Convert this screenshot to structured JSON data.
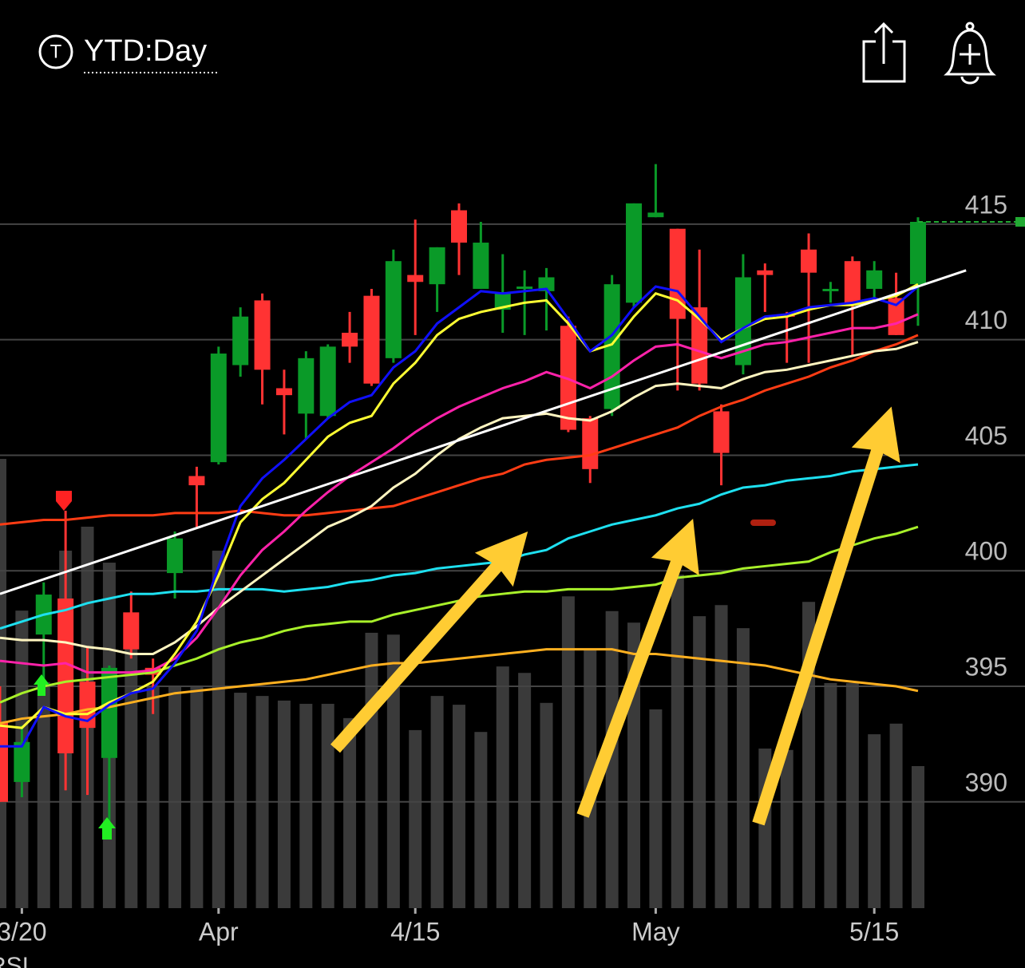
{
  "header": {
    "icon_letter": "T",
    "title": "YTD:Day"
  },
  "chart_data": {
    "type": "candlestick",
    "categories": [
      null,
      "3/20",
      null,
      null,
      null,
      null,
      null,
      null,
      null,
      null,
      "Apr",
      null,
      null,
      null,
      null,
      null,
      null,
      null,
      null,
      "4/15",
      null,
      null,
      null,
      null,
      null,
      null,
      null,
      null,
      null,
      null,
      "May",
      null,
      null,
      null,
      null,
      null,
      null,
      null,
      null,
      null,
      "5/15",
      null,
      null
    ],
    "open": [
      393.45,
      390.86,
      397.24,
      398.8,
      395.2,
      391.9,
      398.2,
      395.8,
      399.9,
      404.1,
      404.7,
      408.9,
      411.7,
      407.9,
      406.8,
      406.7,
      410.3,
      411.9,
      409.2,
      412.8,
      412.4,
      415.6,
      412.2,
      411.3,
      412.2,
      412.1,
      410.6,
      406.6,
      407.0,
      411.6,
      415.3,
      414.8,
      411.4,
      406.9,
      408.9,
      413.0,
      411.1,
      413.9,
      412.1,
      413.4,
      412.2,
      411.8,
      412.4
    ],
    "high": [
      395.0,
      393.3,
      399.5,
      402.6,
      396.7,
      395.9,
      399.1,
      396.2,
      401.7,
      404.5,
      409.7,
      411.4,
      412.0,
      408.7,
      409.5,
      409.8,
      411.2,
      412.2,
      413.9,
      415.2,
      414.0,
      415.9,
      415.1,
      413.7,
      413.0,
      413.1,
      411.0,
      406.7,
      412.8,
      415.9,
      417.6,
      414.8,
      413.9,
      407.2,
      413.7,
      413.3,
      411.2,
      414.6,
      412.5,
      413.6,
      413.4,
      412.9,
      415.3
    ],
    "low": [
      390.0,
      390.2,
      395.0,
      390.5,
      390.3,
      388.4,
      396.2,
      393.8,
      398.8,
      401.9,
      404.6,
      408.4,
      407.2,
      405.9,
      405.7,
      406.6,
      409.0,
      408.0,
      409.0,
      410.2,
      411.2,
      412.8,
      412.2,
      410.3,
      410.2,
      410.4,
      406.0,
      403.8,
      406.7,
      411.4,
      415.3,
      407.8,
      407.8,
      403.7,
      408.5,
      411.2,
      409.0,
      409.0,
      411.6,
      409.3,
      411.7,
      410.2,
      410.6
    ],
    "close": [
      390.0,
      392.59,
      398.97,
      392.1,
      393.2,
      395.8,
      396.6,
      395.5,
      401.4,
      403.7,
      409.4,
      411.0,
      408.7,
      407.6,
      409.2,
      409.7,
      409.7,
      408.1,
      413.4,
      412.5,
      414.0,
      414.2,
      414.2,
      412.0,
      412.3,
      412.7,
      406.1,
      404.4,
      412.4,
      415.9,
      415.5,
      410.9,
      408.1,
      405.1,
      412.7,
      412.8,
      411.0,
      412.9,
      412.2,
      411.6,
      413.0,
      410.2,
      415.1
    ],
    "up_color": "#0a9a28",
    "down_color": "#ff3333",
    "volume": [
      97.4,
      64.5,
      49.0,
      77.5,
      82.7,
      74.9,
      57.6,
      48.1,
      48.1,
      48.1,
      77.5,
      46.7,
      46.0,
      45.0,
      44.3,
      44.3,
      41.2,
      59.7,
      59.3,
      38.6,
      46.0,
      44.1,
      38.2,
      52.4,
      51.0,
      44.5,
      67.6,
      55.9,
      64.4,
      61.9,
      43.1,
      72.3,
      63.3,
      65.7,
      60.7,
      34.6,
      34.3,
      66.4,
      48.8,
      48.8,
      37.7,
      40.0,
      30.8
    ],
    "volume_lim": [
      0,
      100
    ],
    "volume_color": "#3a3a3a",
    "series": [
      {
        "color": "#ffb020",
        "values": [
          393.4,
          393.6,
          393.7,
          393.8,
          394.0,
          394.1,
          394.3,
          394.5,
          394.7,
          394.8,
          394.9,
          395.0,
          395.1,
          395.2,
          395.3,
          395.5,
          395.7,
          395.9,
          396.0,
          396.0,
          396.1,
          396.2,
          396.3,
          396.4,
          396.5,
          396.6,
          396.6,
          396.6,
          396.6,
          396.4,
          396.4,
          396.3,
          396.2,
          396.1,
          396.0,
          395.9,
          395.7,
          395.5,
          395.3,
          395.2,
          395.1,
          395.0,
          394.8
        ]
      },
      {
        "color": "#a8f02a",
        "values": [
          394.3,
          394.7,
          395.0,
          395.2,
          395.3,
          395.4,
          395.5,
          395.6,
          395.9,
          396.2,
          396.6,
          396.9,
          397.1,
          397.4,
          397.6,
          397.7,
          397.8,
          397.8,
          398.1,
          398.3,
          398.5,
          398.7,
          398.9,
          399.0,
          399.1,
          399.1,
          399.2,
          399.2,
          399.2,
          399.3,
          399.4,
          399.7,
          399.8,
          399.9,
          400.1,
          400.2,
          400.3,
          400.4,
          400.8,
          401.1,
          401.4,
          401.6,
          401.9
        ]
      },
      {
        "color": "#1ee0f0",
        "values": [
          397.5,
          397.8,
          398.1,
          398.3,
          398.6,
          398.8,
          399.0,
          399.0,
          399.1,
          399.1,
          399.2,
          399.2,
          399.2,
          399.1,
          399.2,
          399.3,
          399.5,
          399.6,
          399.8,
          399.9,
          400.1,
          400.2,
          400.3,
          400.4,
          400.7,
          400.9,
          401.4,
          401.7,
          402.0,
          402.2,
          402.4,
          402.7,
          402.9,
          403.3,
          403.6,
          403.7,
          403.9,
          404.0,
          404.1,
          404.3,
          404.4,
          404.5,
          404.6
        ]
      },
      {
        "color": "#ff3c14",
        "values": [
          402.0,
          402.1,
          402.2,
          402.2,
          402.3,
          402.4,
          402.4,
          402.4,
          402.5,
          402.5,
          402.5,
          402.6,
          402.5,
          402.4,
          402.4,
          402.5,
          402.6,
          402.7,
          402.8,
          403.1,
          403.4,
          403.7,
          404.0,
          404.2,
          404.6,
          404.8,
          404.9,
          405.0,
          405.3,
          405.6,
          405.9,
          406.2,
          406.7,
          407.1,
          407.4,
          407.8,
          408.1,
          408.4,
          408.8,
          409.1,
          409.5,
          409.8,
          410.2
        ]
      },
      {
        "color": "#fff5c0",
        "values": [
          397.1,
          397.0,
          397.0,
          396.9,
          396.7,
          396.6,
          396.4,
          396.4,
          396.9,
          397.6,
          398.4,
          399.1,
          399.8,
          400.5,
          401.2,
          401.9,
          402.3,
          402.8,
          403.6,
          404.2,
          405.0,
          405.7,
          406.2,
          406.6,
          406.7,
          406.8,
          406.6,
          406.5,
          406.9,
          407.5,
          408.0,
          408.1,
          408.0,
          407.9,
          408.3,
          408.6,
          408.7,
          408.9,
          409.1,
          409.3,
          409.5,
          409.6,
          409.9
        ]
      },
      {
        "color": "#ff22aa",
        "values": [
          396.1,
          396.0,
          395.9,
          396.0,
          395.6,
          395.6,
          395.6,
          395.7,
          396.2,
          397.1,
          398.4,
          399.8,
          400.9,
          401.7,
          402.6,
          403.4,
          404.1,
          404.7,
          405.3,
          406.0,
          406.6,
          407.1,
          407.5,
          407.9,
          408.2,
          408.6,
          408.3,
          407.9,
          408.4,
          409.1,
          409.7,
          409.8,
          409.5,
          409.2,
          409.5,
          409.8,
          409.9,
          410.1,
          410.3,
          410.5,
          410.5,
          410.7,
          411.1
        ]
      },
      {
        "color": "#ffff33",
        "values": [
          393.3,
          393.2,
          394.1,
          393.8,
          393.8,
          394.3,
          394.7,
          395.2,
          396.4,
          397.8,
          399.8,
          402.1,
          403.1,
          403.8,
          404.8,
          405.8,
          406.4,
          406.7,
          408.1,
          409.0,
          410.2,
          410.9,
          411.2,
          411.4,
          411.6,
          411.7,
          410.7,
          409.5,
          409.8,
          411.0,
          412.0,
          411.7,
          410.9,
          410.0,
          410.5,
          410.9,
          411.0,
          411.3,
          411.5,
          411.5,
          411.7,
          411.9,
          412.4
        ]
      },
      {
        "color": "#1010ff",
        "values": [
          392.4,
          392.4,
          394.1,
          393.7,
          393.5,
          394.2,
          394.7,
          394.9,
          396.0,
          397.4,
          400.2,
          402.8,
          404.0,
          404.8,
          405.7,
          406.6,
          407.3,
          407.6,
          408.8,
          409.5,
          410.7,
          411.4,
          412.1,
          412.0,
          412.1,
          412.2,
          410.9,
          409.5,
          410.2,
          411.4,
          412.3,
          412.1,
          411.0,
          409.9,
          410.5,
          411.0,
          411.1,
          411.4,
          411.5,
          411.6,
          411.8,
          411.5,
          412.3
        ]
      }
    ],
    "trendline": {
      "color": "#ffffff",
      "x": [
        0,
        44.2
      ],
      "values": [
        399.0,
        413.0
      ]
    },
    "last_price_color": "#22aa33",
    "ylim": [
      385.4,
      424.7
    ],
    "yticks": [
      390,
      395,
      400,
      405,
      410,
      415
    ],
    "grid": true,
    "indicator_label": "RSI"
  }
}
